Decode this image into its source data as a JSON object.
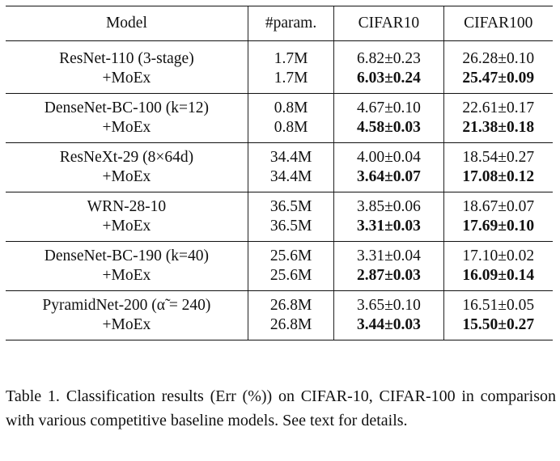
{
  "table": {
    "headers": [
      "Model",
      "#param.",
      "CIFAR10",
      "CIFAR100"
    ],
    "groups": [
      {
        "model": "ResNet-110 (3-stage)",
        "rows": [
          {
            "model": "ResNet-110 (3-stage)",
            "params": "1.7M",
            "cifar10": "6.82±0.23",
            "cifar100": "26.28±0.10",
            "best": false
          },
          {
            "model": "+MoEx",
            "params": "1.7M",
            "cifar10": "6.03±0.24",
            "cifar100": "25.47±0.09",
            "best": true
          }
        ]
      },
      {
        "rows": [
          {
            "model": "DenseNet-BC-100 (k=12)",
            "params": "0.8M",
            "cifar10": "4.67±0.10",
            "cifar100": "22.61±0.17",
            "best": false
          },
          {
            "model": "+MoEx",
            "params": "0.8M",
            "cifar10": "4.58±0.03",
            "cifar100": "21.38±0.18",
            "best": true
          }
        ]
      },
      {
        "rows": [
          {
            "model": "ResNeXt-29 (8×64d)",
            "params": "34.4M",
            "cifar10": "4.00±0.04",
            "cifar100": "18.54±0.27",
            "best": false
          },
          {
            "model": "+MoEx",
            "params": "34.4M",
            "cifar10": "3.64±0.07",
            "cifar100": "17.08±0.12",
            "best": true
          }
        ]
      },
      {
        "rows": [
          {
            "model": "WRN-28-10",
            "params": "36.5M",
            "cifar10": "3.85±0.06",
            "cifar100": "18.67±0.07",
            "best": false
          },
          {
            "model": "+MoEx",
            "params": "36.5M",
            "cifar10": "3.31±0.03",
            "cifar100": "17.69±0.10",
            "best": true
          }
        ]
      },
      {
        "rows": [
          {
            "model": "DenseNet-BC-190 (k=40)",
            "params": "25.6M",
            "cifar10": "3.31±0.04",
            "cifar100": "17.10±0.02",
            "best": false
          },
          {
            "model": "+MoEx",
            "params": "25.6M",
            "cifar10": "2.87±0.03",
            "cifar100": "16.09±0.14",
            "best": true
          }
        ]
      },
      {
        "rows": [
          {
            "model": "PyramidNet-200 (α̃ = 240)",
            "params": "26.8M",
            "cifar10": "3.65±0.10",
            "cifar100": "16.51±0.05",
            "best": false
          },
          {
            "model": "+MoEx",
            "params": "26.8M",
            "cifar10": "3.44±0.03",
            "cifar100": "15.50±0.27",
            "best": true
          }
        ]
      }
    ]
  },
  "caption": {
    "label": "Table 1.",
    "text": "Classification results (Err (%)) on CIFAR-10, CIFAR-100 in comparison with various competitive baseline models. See text for details."
  }
}
